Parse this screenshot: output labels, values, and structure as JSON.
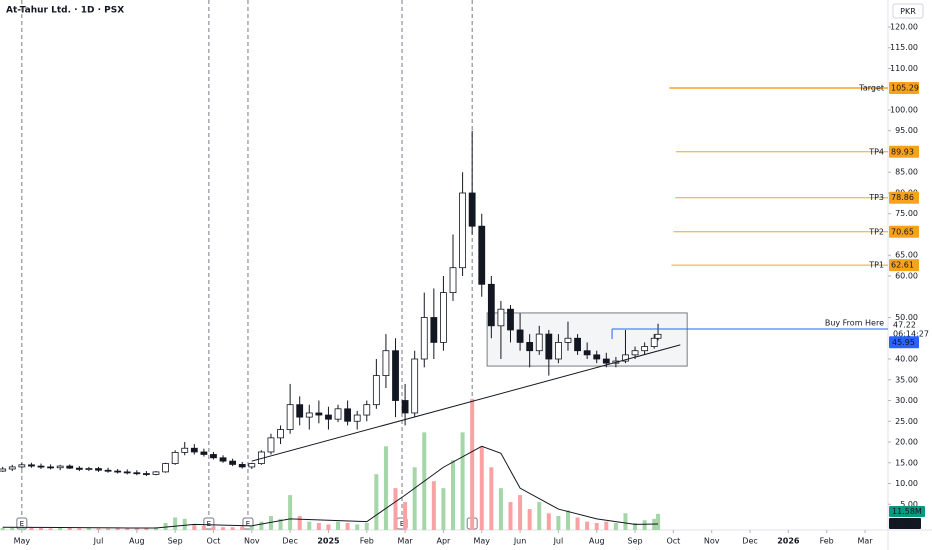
{
  "chart_data": {
    "type": "candlestick",
    "title": "At-Tahur Ltd. · 1D · PSX",
    "currency": "PKR",
    "xlim": [
      -0.57,
      22.6
    ],
    "ylim": [
      -1.2,
      126.5
    ],
    "y2lim": [
      0,
      380
    ],
    "xticks": [
      {
        "value": 0,
        "label": "May"
      },
      {
        "value": 2,
        "label": "Jul"
      },
      {
        "value": 3,
        "label": "Aug"
      },
      {
        "value": 4,
        "label": "Sep"
      },
      {
        "value": 5,
        "label": "Oct"
      },
      {
        "value": 6,
        "label": "Nov"
      },
      {
        "value": 7,
        "label": "Dec"
      },
      {
        "value": 8,
        "label": "2025"
      },
      {
        "value": 9,
        "label": "Feb"
      },
      {
        "value": 10,
        "label": "Mar"
      },
      {
        "value": 11,
        "label": "Apr"
      },
      {
        "value": 12,
        "label": "May"
      },
      {
        "value": 13,
        "label": "Jun"
      },
      {
        "value": 14,
        "label": "Jul"
      },
      {
        "value": 15,
        "label": "Aug"
      },
      {
        "value": 16,
        "label": "Sep"
      },
      {
        "value": 17,
        "label": "Oct"
      },
      {
        "value": 18,
        "label": "Nov"
      },
      {
        "value": 19,
        "label": "Dec"
      },
      {
        "value": 20,
        "label": "2026"
      },
      {
        "value": 21,
        "label": "Feb"
      },
      {
        "value": 22,
        "label": "Mar"
      }
    ],
    "yticks": [
      {
        "value": 120,
        "label": "120.00"
      },
      {
        "value": 115,
        "label": "115.00"
      },
      {
        "value": 110,
        "label": "110.00"
      },
      {
        "value": 100,
        "label": "100.00"
      },
      {
        "value": 95,
        "label": "95.00"
      },
      {
        "value": 85,
        "label": "85.00"
      },
      {
        "value": 80,
        "label": "80.00"
      },
      {
        "value": 75,
        "label": "75.00"
      },
      {
        "value": 65,
        "label": "65.00"
      },
      {
        "value": 60,
        "label": "60.00"
      },
      {
        "value": 50,
        "label": "50.00"
      },
      {
        "value": 40,
        "label": "40.00"
      },
      {
        "value": 35,
        "label": "35.00"
      },
      {
        "value": 30,
        "label": "30.00"
      },
      {
        "value": 25,
        "label": "25.00"
      },
      {
        "value": 20,
        "label": "20.00"
      },
      {
        "value": 15,
        "label": "15.00"
      },
      {
        "value": 10,
        "label": "10.00"
      },
      {
        "value": 5,
        "label": "5.00"
      }
    ],
    "x": [
      -0.5,
      -0.25,
      0,
      0.25,
      0.5,
      0.75,
      1,
      1.25,
      1.5,
      1.75,
      2,
      2.25,
      2.5,
      2.75,
      3,
      3.25,
      3.5,
      3.75,
      4,
      4.25,
      4.5,
      4.75,
      5,
      5.25,
      5.5,
      5.75,
      6,
      6.25,
      6.5,
      6.75,
      7,
      7.25,
      7.5,
      7.75,
      8,
      8.25,
      8.5,
      8.75,
      9,
      9.25,
      9.5,
      9.75,
      10,
      10.25,
      10.5,
      10.75,
      11,
      11.25,
      11.5,
      11.75,
      12,
      12.25,
      12.5,
      12.75,
      13,
      13.25,
      13.5,
      13.75,
      14,
      14.25,
      14.5,
      14.75,
      15,
      15.25,
      15.5,
      15.75,
      16,
      16.25,
      16.5,
      16.6
    ],
    "open": [
      13,
      13.5,
      14,
      14.5,
      14.2,
      14,
      13.8,
      14.2,
      13.7,
      13.4,
      13.6,
      13.2,
      13,
      12.8,
      12.6,
      12.4,
      12.2,
      12.8,
      14.8,
      17.5,
      18.5,
      17.6,
      17,
      16.2,
      15.4,
      14.6,
      14,
      14.8,
      17.6,
      21,
      23,
      29,
      26,
      27,
      26.5,
      25.5,
      28,
      25,
      26.5,
      29,
      36,
      42,
      30,
      27,
      40,
      50,
      44,
      56,
      62,
      80,
      72,
      58,
      48,
      52,
      47,
      44,
      42,
      46,
      40,
      44,
      45,
      42,
      41,
      40,
      39,
      39.5,
      41,
      42,
      43,
      45
    ],
    "high": [
      14,
      14.5,
      15,
      15,
      14.8,
      14.6,
      14.5,
      14.6,
      14.2,
      14,
      14,
      13.8,
      13.5,
      13.4,
      13.2,
      13,
      13,
      15,
      18,
      20,
      19.5,
      18.4,
      17.6,
      16.8,
      16,
      15.2,
      15,
      18,
      22,
      24,
      34,
      31,
      29,
      30,
      28.5,
      29,
      30,
      27.5,
      30,
      40,
      46,
      45,
      34,
      42,
      56,
      57,
      60,
      70,
      85,
      95,
      75,
      60,
      54,
      53,
      51,
      46,
      48,
      47,
      46,
      49,
      46,
      44,
      42,
      41.5,
      40.5,
      47,
      43,
      44,
      46,
      48.5
    ],
    "low": [
      12.8,
      13,
      13.6,
      13.8,
      13.5,
      13.4,
      13.2,
      13.5,
      13,
      13,
      12.8,
      12.6,
      12.4,
      12.2,
      12,
      11.8,
      12,
      12.6,
      14.5,
      16.8,
      17,
      16.5,
      15.8,
      15,
      14.2,
      13.6,
      13.5,
      14.5,
      17,
      19.5,
      22,
      24,
      23,
      24.5,
      23,
      24.8,
      24,
      23,
      25,
      28,
      33,
      26,
      24,
      26,
      38,
      40,
      42,
      54,
      60,
      70,
      55,
      45,
      40,
      44,
      42,
      38,
      41,
      36,
      39,
      42,
      41,
      40,
      39,
      38,
      38,
      39,
      40,
      41,
      42.5,
      44.5
    ],
    "close": [
      13.5,
      14,
      14.5,
      14.2,
      14,
      13.8,
      14.2,
      13.7,
      13.4,
      13.6,
      13.2,
      13,
      12.8,
      12.6,
      12.4,
      12.2,
      12.8,
      14.8,
      17.5,
      18.5,
      17.6,
      17,
      16.2,
      15.4,
      14.6,
      14,
      14.8,
      17.6,
      21,
      23,
      29,
      26,
      27,
      26.5,
      25.5,
      28,
      25,
      26.5,
      29,
      36,
      42,
      30,
      27,
      40,
      50,
      44,
      56,
      62,
      80,
      72,
      58,
      48,
      52,
      47,
      44,
      42,
      46,
      40,
      44,
      45,
      42,
      41,
      40,
      39,
      39.5,
      41,
      42,
      43,
      45,
      45.95
    ],
    "volume": [
      1.5,
      2,
      2.5,
      1.8,
      1.5,
      1.2,
      2,
      1.5,
      1.2,
      1.4,
      1.1,
      1,
      1.3,
      1,
      1.2,
      1.5,
      2,
      5,
      9,
      8,
      4,
      3,
      2.5,
      2,
      2,
      2.5,
      3,
      6,
      10,
      8,
      25,
      10,
      6,
      5,
      4,
      6,
      5,
      4,
      5,
      40,
      60,
      30,
      20,
      45,
      70,
      35,
      30,
      50,
      70,
      94,
      60,
      45,
      30,
      20,
      25,
      15,
      20,
      12,
      10,
      14,
      9,
      6,
      5,
      6,
      5,
      12,
      5,
      7,
      8,
      11.58
    ],
    "volume_label": "11.58M",
    "volume_ma": {
      "x": [
        -0.5,
        1,
        2.5,
        3.5,
        4.5,
        6,
        7,
        8,
        9,
        10,
        11,
        12,
        12.5,
        13,
        14,
        15,
        16,
        16.6
      ],
      "values": [
        2,
        1.8,
        1.5,
        1.4,
        4,
        3,
        8,
        7,
        6,
        25,
        45,
        60,
        55,
        30,
        15,
        8,
        4,
        4.28
      ],
      "label": "4.28M"
    },
    "up_color": "#ffffff",
    "down_color": "#131722",
    "vol_up_color": "#a5d6a7",
    "vol_down_color": "#faa1a4",
    "events": [
      {
        "x": 0,
        "label": "E"
      },
      {
        "x": 4.88,
        "label": "E"
      },
      {
        "x": 5.9,
        "label": "E"
      },
      {
        "x": 9.92,
        "label": "E"
      },
      {
        "x": 11.75,
        "label": "E"
      }
    ],
    "trendline": {
      "x": [
        6.0,
        17.18
      ],
      "values": [
        15.4,
        43.4
      ]
    },
    "box": {
      "x": [
        12.14,
        17.36
      ],
      "values": [
        38.3,
        51.1
      ]
    },
    "levels": [
      {
        "name": "Target",
        "value": 105.29,
        "start": 16.9,
        "color": "#f7a21b"
      },
      {
        "name": "TP4",
        "value": 89.93,
        "start": 17.07,
        "color": "#f7a21b"
      },
      {
        "name": "TP3",
        "value": 78.86,
        "start": 17.05,
        "color": "#f7a21b"
      },
      {
        "name": "TP2",
        "value": 70.65,
        "start": 17.0,
        "color": "#f7a21b"
      },
      {
        "name": "TP1",
        "value": 62.61,
        "start": 16.95,
        "color": "#f7a21b"
      }
    ],
    "buy_level": {
      "name": "Buy From Here",
      "value": 47.22,
      "start": 15.4,
      "color": "#2962ff"
    },
    "countdown": "06:14:27",
    "last_price": 45.95
  }
}
